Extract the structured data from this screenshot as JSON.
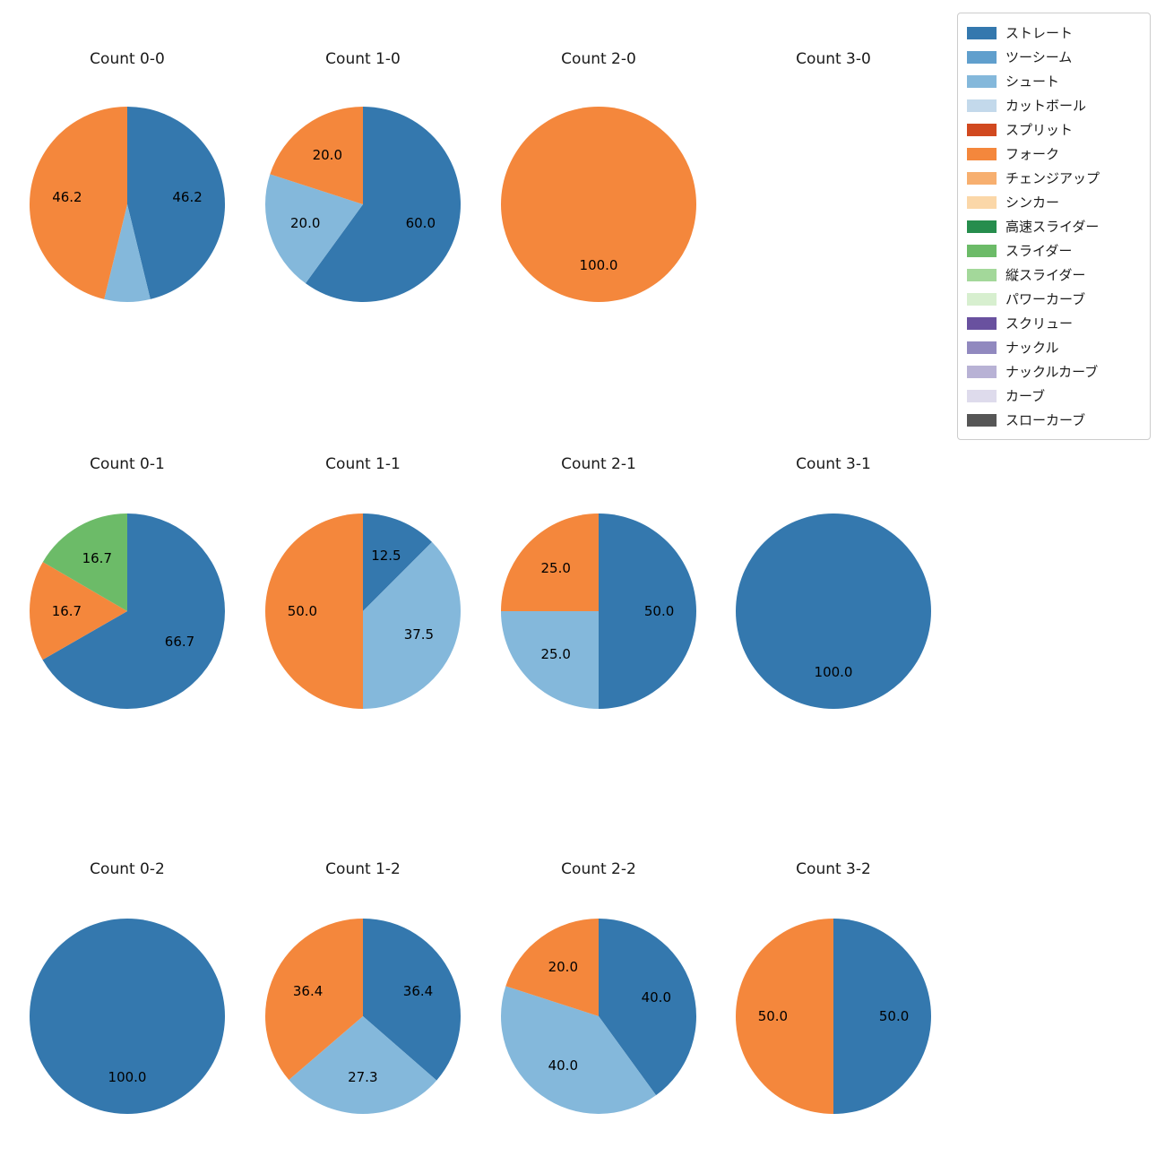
{
  "figure": {
    "background": "#ffffff",
    "title_color": "#1a1a1a",
    "label_color": "#000000"
  },
  "legend": {
    "items": [
      {
        "label": "ストレート",
        "color": "#3478ae"
      },
      {
        "label": "ツーシーム",
        "color": "#609fcd"
      },
      {
        "label": "シュート",
        "color": "#84b8db"
      },
      {
        "label": "カットボール",
        "color": "#c3d9eb"
      },
      {
        "label": "スプリット",
        "color": "#d1491f"
      },
      {
        "label": "フォーク",
        "color": "#f4873c"
      },
      {
        "label": "チェンジアップ",
        "color": "#f7af6f"
      },
      {
        "label": "シンカー",
        "color": "#fbd7a8"
      },
      {
        "label": "高速スライダー",
        "color": "#268d4d"
      },
      {
        "label": "スライダー",
        "color": "#6cbb68"
      },
      {
        "label": "縦スライダー",
        "color": "#a3d89a"
      },
      {
        "label": "パワーカーブ",
        "color": "#d7efcf"
      },
      {
        "label": "スクリュー",
        "color": "#69519f"
      },
      {
        "label": "ナックル",
        "color": "#9189bf"
      },
      {
        "label": "ナックルカーブ",
        "color": "#b8b2d5"
      },
      {
        "label": "カーブ",
        "color": "#dedbec"
      },
      {
        "label": "スローカーブ",
        "color": "#565656"
      }
    ]
  },
  "chart_data": {
    "type": "pie",
    "value_unit": "percent",
    "pie_start_angle": 90,
    "pie_direction": "clockwise",
    "legend_position": "upper right",
    "charts": [
      {
        "title": "Count 0-0",
        "slices": [
          {
            "pitch": "ストレート",
            "value": 46.2,
            "label": "46.2"
          },
          {
            "pitch": "シュート",
            "value": 7.6,
            "label": ""
          },
          {
            "pitch": "フォーク",
            "value": 46.2,
            "label": "46.2"
          }
        ]
      },
      {
        "title": "Count 1-0",
        "slices": [
          {
            "pitch": "ストレート",
            "value": 60.0,
            "label": "60.0"
          },
          {
            "pitch": "シュート",
            "value": 20.0,
            "label": "20.0"
          },
          {
            "pitch": "フォーク",
            "value": 20.0,
            "label": "20.0"
          }
        ]
      },
      {
        "title": "Count 2-0",
        "slices": [
          {
            "pitch": "フォーク",
            "value": 100.0,
            "label": "100.0"
          }
        ]
      },
      {
        "title": "Count 3-0",
        "slices": []
      },
      {
        "title": "Count 0-1",
        "slices": [
          {
            "pitch": "ストレート",
            "value": 66.7,
            "label": "66.7"
          },
          {
            "pitch": "フォーク",
            "value": 16.7,
            "label": "16.7"
          },
          {
            "pitch": "スライダー",
            "value": 16.7,
            "label": "16.7"
          }
        ]
      },
      {
        "title": "Count 1-1",
        "slices": [
          {
            "pitch": "ストレート",
            "value": 12.5,
            "label": "12.5"
          },
          {
            "pitch": "シュート",
            "value": 37.5,
            "label": "37.5"
          },
          {
            "pitch": "フォーク",
            "value": 50.0,
            "label": "50.0"
          }
        ]
      },
      {
        "title": "Count 2-1",
        "slices": [
          {
            "pitch": "ストレート",
            "value": 50.0,
            "label": "50.0"
          },
          {
            "pitch": "シュート",
            "value": 25.0,
            "label": "25.0"
          },
          {
            "pitch": "フォーク",
            "value": 25.0,
            "label": "25.0"
          }
        ]
      },
      {
        "title": "Count 3-1",
        "slices": [
          {
            "pitch": "ストレート",
            "value": 100.0,
            "label": "100.0"
          }
        ]
      },
      {
        "title": "Count 0-2",
        "slices": [
          {
            "pitch": "ストレート",
            "value": 100.0,
            "label": "100.0"
          }
        ]
      },
      {
        "title": "Count 1-2",
        "slices": [
          {
            "pitch": "ストレート",
            "value": 36.4,
            "label": "36.4"
          },
          {
            "pitch": "シュート",
            "value": 27.3,
            "label": "27.3"
          },
          {
            "pitch": "フォーク",
            "value": 36.4,
            "label": "36.4"
          }
        ]
      },
      {
        "title": "Count 2-2",
        "slices": [
          {
            "pitch": "ストレート",
            "value": 40.0,
            "label": "40.0"
          },
          {
            "pitch": "シュート",
            "value": 40.0,
            "label": "40.0"
          },
          {
            "pitch": "フォーク",
            "value": 20.0,
            "label": "20.0"
          }
        ]
      },
      {
        "title": "Count 3-2",
        "slices": [
          {
            "pitch": "ストレート",
            "value": 50.0,
            "label": "50.0"
          },
          {
            "pitch": "フォーク",
            "value": 50.0,
            "label": "50.0"
          }
        ]
      }
    ]
  }
}
